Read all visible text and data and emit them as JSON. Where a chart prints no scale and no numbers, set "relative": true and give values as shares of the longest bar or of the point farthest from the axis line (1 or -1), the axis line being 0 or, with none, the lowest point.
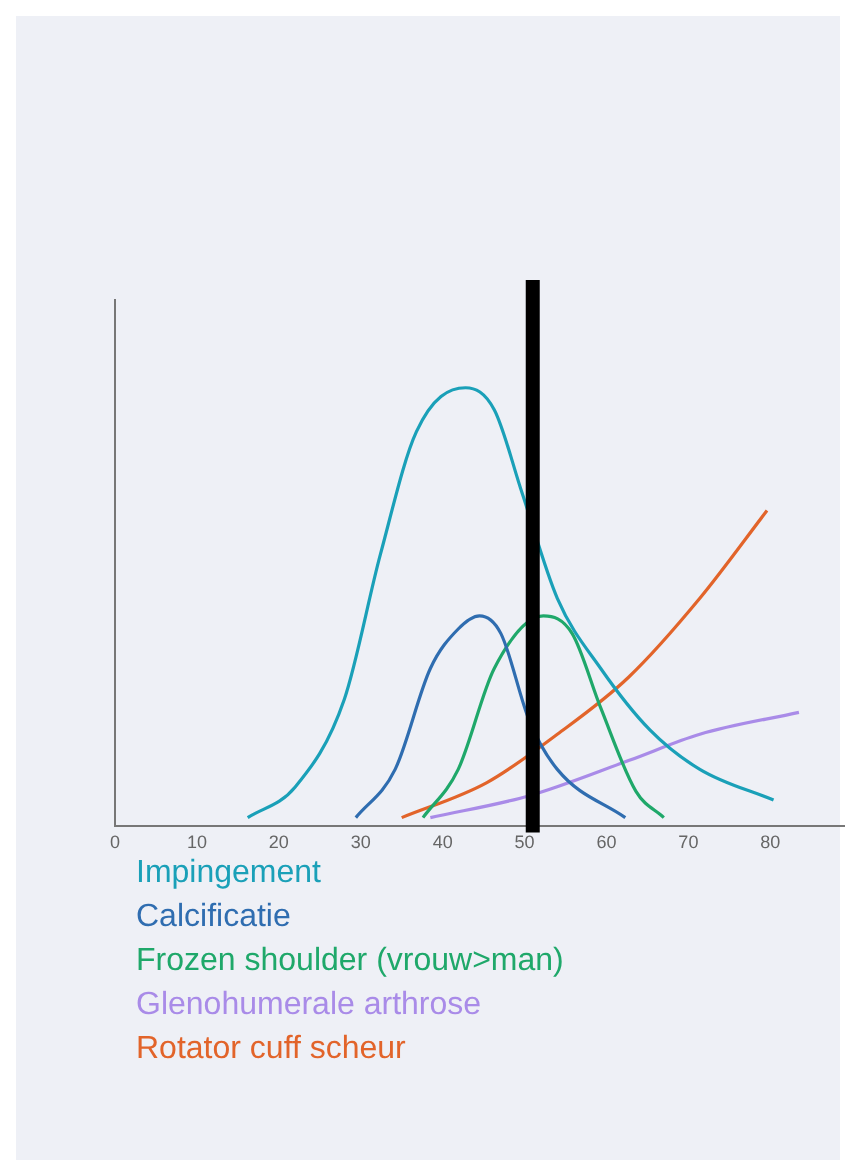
{
  "chart_data": {
    "type": "line",
    "relative": true,
    "xlim": [
      0,
      89
    ],
    "xticks": [
      0,
      10,
      20,
      30,
      40,
      50,
      60,
      70,
      80
    ],
    "grid": false,
    "legend": "bottom",
    "marker": "none",
    "line_style": "solid",
    "ref_lines": [
      {
        "axis": "x",
        "value": 51,
        "color": "#000000"
      }
    ],
    "series": [
      {
        "name": "Impingement",
        "color": "#1aa0b8",
        "x": [
          16.2,
          22,
          28,
          32.4,
          36.8,
          42.8,
          46.3,
          49.7,
          54,
          59.3,
          65.3,
          71.4,
          80.4
        ],
        "values": [
          0.02,
          0.09,
          0.29,
          0.62,
          0.9,
          1,
          0.95,
          0.76,
          0.52,
          0.36,
          0.22,
          0.13,
          0.06
        ]
      },
      {
        "name": "Calcificatie",
        "color": "#2f6db0",
        "x": [
          29.4,
          34.2,
          38.5,
          41.9,
          44.5,
          47.1,
          50.6,
          54,
          62.3
        ],
        "values": [
          0.02,
          0.13,
          0.36,
          0.45,
          0.48,
          0.44,
          0.24,
          0.13,
          0.02
        ]
      },
      {
        "name": "Frozen shoulder (vrouw>man)",
        "color": "#1fa86a",
        "x": [
          37.6,
          41.9,
          46.3,
          52.3,
          55.8,
          59.3,
          63.6,
          67
        ],
        "values": [
          0.02,
          0.13,
          0.36,
          0.48,
          0.44,
          0.27,
          0.08,
          0.02
        ]
      },
      {
        "name": "Glenohumerale arthrose",
        "color": "#a98be8",
        "x": [
          38.5,
          50.6,
          62.7,
          71.4,
          83.5
        ],
        "values": [
          0.02,
          0.07,
          0.15,
          0.21,
          0.26
        ]
      },
      {
        "name": "Rotator cuff scheur",
        "color": "#e2642a",
        "x": [
          35,
          45.4,
          54,
          62.7,
          71.4,
          79.6
        ],
        "values": [
          0.02,
          0.1,
          0.21,
          0.34,
          0.52,
          0.72
        ]
      }
    ]
  }
}
